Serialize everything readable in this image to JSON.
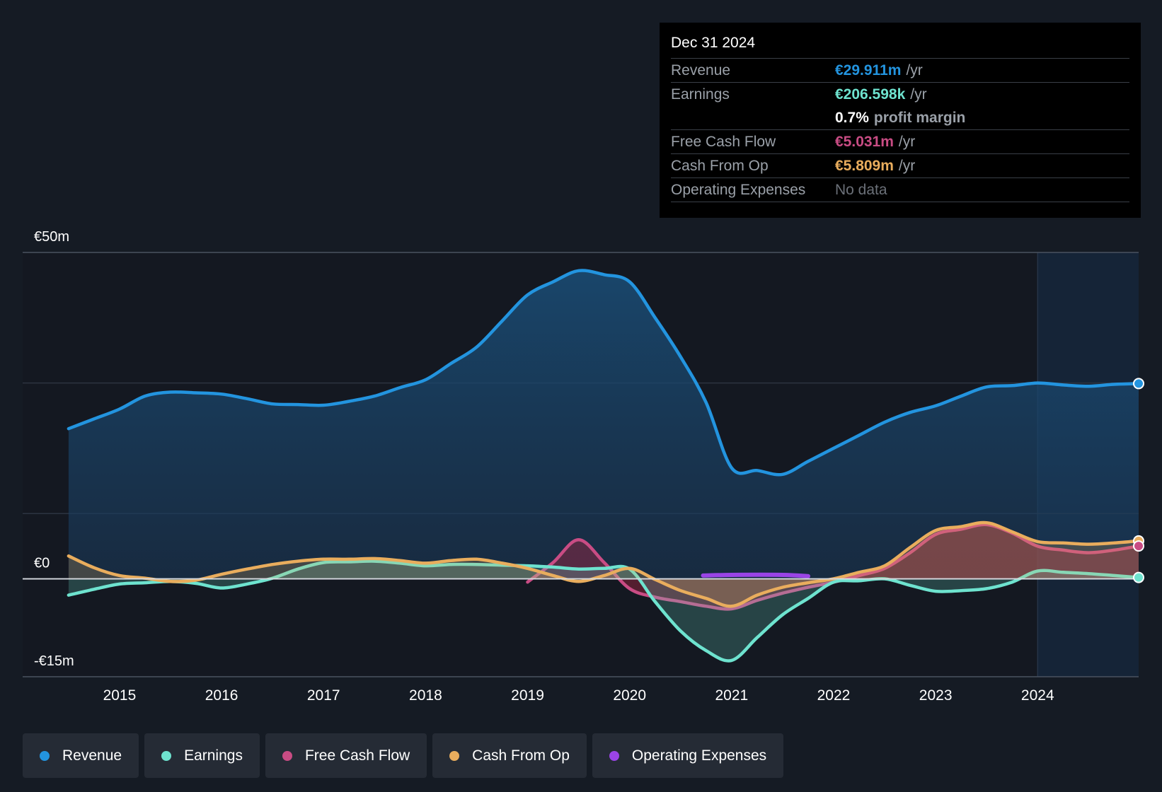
{
  "tooltip": {
    "date": "Dec 31 2024",
    "revenue_label": "Revenue",
    "revenue_value": "€29.911m",
    "earnings_label": "Earnings",
    "earnings_value": "€206.598k",
    "margin_value": "0.7%",
    "margin_text": "profit margin",
    "fcf_label": "Free Cash Flow",
    "fcf_value": "€5.031m",
    "cfo_label": "Cash From Op",
    "cfo_value": "€5.809m",
    "opex_label": "Operating Expenses",
    "opex_value": "No data",
    "unit": "/yr"
  },
  "legend": [
    {
      "label": "Revenue",
      "color": "#2394df"
    },
    {
      "label": "Earnings",
      "color": "#6ee3cf"
    },
    {
      "label": "Free Cash Flow",
      "color": "#c94c84"
    },
    {
      "label": "Cash From Op",
      "color": "#e9ad5d"
    },
    {
      "label": "Operating Expenses",
      "color": "#9a44e6"
    }
  ],
  "chart_data": {
    "type": "line",
    "title": "",
    "xlabel": "",
    "ylabel": "",
    "ylim": [
      -15,
      50
    ],
    "y_tick_labels": [
      "€50m",
      "€0",
      "-€15m"
    ],
    "x_ticks": [
      2015,
      2016,
      2017,
      2018,
      2019,
      2020,
      2021,
      2022,
      2023,
      2024
    ],
    "xlim": [
      2014.05,
      2024.99
    ],
    "forecast_start": 2024.0,
    "series": [
      {
        "name": "Revenue",
        "color": "#2394df",
        "fill": true,
        "x": [
          2014.5,
          2014.75,
          2015.0,
          2015.25,
          2015.5,
          2015.75,
          2016.0,
          2016.25,
          2016.5,
          2016.75,
          2017.0,
          2017.25,
          2017.5,
          2017.75,
          2018.0,
          2018.25,
          2018.5,
          2018.75,
          2019.0,
          2019.25,
          2019.5,
          2019.75,
          2020.0,
          2020.25,
          2020.5,
          2020.75,
          2021.0,
          2021.25,
          2021.5,
          2021.75,
          2022.0,
          2022.25,
          2022.5,
          2022.75,
          2023.0,
          2023.25,
          2023.5,
          2023.75,
          2024.0,
          2024.25,
          2024.5,
          2024.75,
          2024.99
        ],
        "values": [
          23.0,
          24.5,
          26.0,
          28.0,
          28.6,
          28.5,
          28.3,
          27.6,
          26.8,
          26.7,
          26.6,
          27.2,
          28.0,
          29.3,
          30.5,
          33.0,
          35.5,
          39.5,
          43.5,
          45.5,
          47.2,
          46.6,
          45.5,
          40.0,
          34.0,
          27.0,
          17.0,
          16.6,
          16.0,
          18.0,
          20.0,
          22.0,
          24.0,
          25.5,
          26.5,
          28.0,
          29.4,
          29.6,
          30.0,
          29.7,
          29.5,
          29.8,
          29.911
        ]
      },
      {
        "name": "Earnings",
        "color": "#6ee3cf",
        "fill": true,
        "x": [
          2014.5,
          2014.75,
          2015.0,
          2015.25,
          2015.5,
          2015.75,
          2016.0,
          2016.25,
          2016.5,
          2016.75,
          2017.0,
          2017.25,
          2017.5,
          2017.75,
          2018.0,
          2018.25,
          2018.5,
          2018.75,
          2019.0,
          2019.25,
          2019.5,
          2019.75,
          2020.0,
          2020.25,
          2020.5,
          2020.75,
          2021.0,
          2021.25,
          2021.5,
          2021.75,
          2022.0,
          2022.25,
          2022.5,
          2022.75,
          2023.0,
          2023.25,
          2023.5,
          2023.75,
          2024.0,
          2024.25,
          2024.5,
          2024.75,
          2024.99
        ],
        "values": [
          -2.5,
          -1.6,
          -0.8,
          -0.6,
          -0.4,
          -0.7,
          -1.4,
          -0.8,
          0.1,
          1.5,
          2.5,
          2.6,
          2.7,
          2.4,
          2.0,
          2.2,
          2.2,
          2.1,
          2.0,
          1.8,
          1.5,
          1.6,
          1.5,
          -3.5,
          -8.0,
          -11.0,
          -12.5,
          -9.0,
          -5.5,
          -3.0,
          -0.5,
          -0.3,
          0.0,
          -1.0,
          -1.9,
          -1.8,
          -1.5,
          -0.5,
          1.2,
          1.0,
          0.8,
          0.5,
          0.2066
        ]
      },
      {
        "name": "Free Cash Flow",
        "color": "#c94c84",
        "fill": true,
        "x": [
          2019.0,
          2019.25,
          2019.5,
          2019.75,
          2020.0,
          2020.25,
          2020.5,
          2020.75,
          2021.0,
          2021.25,
          2021.5,
          2021.75,
          2022.0,
          2022.25,
          2022.5,
          2022.75,
          2023.0,
          2023.25,
          2023.5,
          2023.75,
          2024.0,
          2024.25,
          2024.5,
          2024.75,
          2024.99
        ],
        "values": [
          -0.5,
          2.5,
          6.0,
          2.5,
          -1.5,
          -2.8,
          -3.5,
          -4.2,
          -4.6,
          -3.3,
          -2.2,
          -1.3,
          -0.5,
          0.5,
          1.6,
          4.0,
          6.8,
          7.6,
          8.3,
          7.0,
          5.0,
          4.4,
          4.0,
          4.4,
          5.031
        ]
      },
      {
        "name": "Cash From Op",
        "color": "#e9ad5d",
        "fill": true,
        "x": [
          2014.5,
          2014.75,
          2015.0,
          2015.25,
          2015.5,
          2015.75,
          2016.0,
          2016.25,
          2016.5,
          2016.75,
          2017.0,
          2017.25,
          2017.5,
          2017.75,
          2018.0,
          2018.25,
          2018.5,
          2018.75,
          2019.0,
          2019.25,
          2019.5,
          2019.75,
          2020.0,
          2020.25,
          2020.5,
          2020.75,
          2021.0,
          2021.25,
          2021.5,
          2021.75,
          2022.0,
          2022.25,
          2022.5,
          2022.75,
          2023.0,
          2023.25,
          2023.5,
          2023.75,
          2024.0,
          2024.25,
          2024.5,
          2024.75,
          2024.99
        ],
        "values": [
          3.5,
          1.7,
          0.5,
          0.1,
          -0.4,
          -0.2,
          0.7,
          1.5,
          2.2,
          2.7,
          3.0,
          3.0,
          3.1,
          2.8,
          2.4,
          2.8,
          3.0,
          2.4,
          1.6,
          0.5,
          -0.4,
          0.5,
          1.6,
          -0.1,
          -1.8,
          -3.0,
          -4.2,
          -2.5,
          -1.3,
          -0.6,
          0.0,
          1.0,
          2.0,
          4.8,
          7.4,
          8.0,
          8.6,
          7.2,
          5.7,
          5.5,
          5.3,
          5.5,
          5.809
        ]
      },
      {
        "name": "Operating Expenses",
        "color": "#9a44e6",
        "fill": false,
        "x": [
          2020.72,
          2021.0,
          2021.5,
          2021.75
        ],
        "values": [
          0.5,
          0.6,
          0.6,
          0.4
        ]
      }
    ]
  }
}
